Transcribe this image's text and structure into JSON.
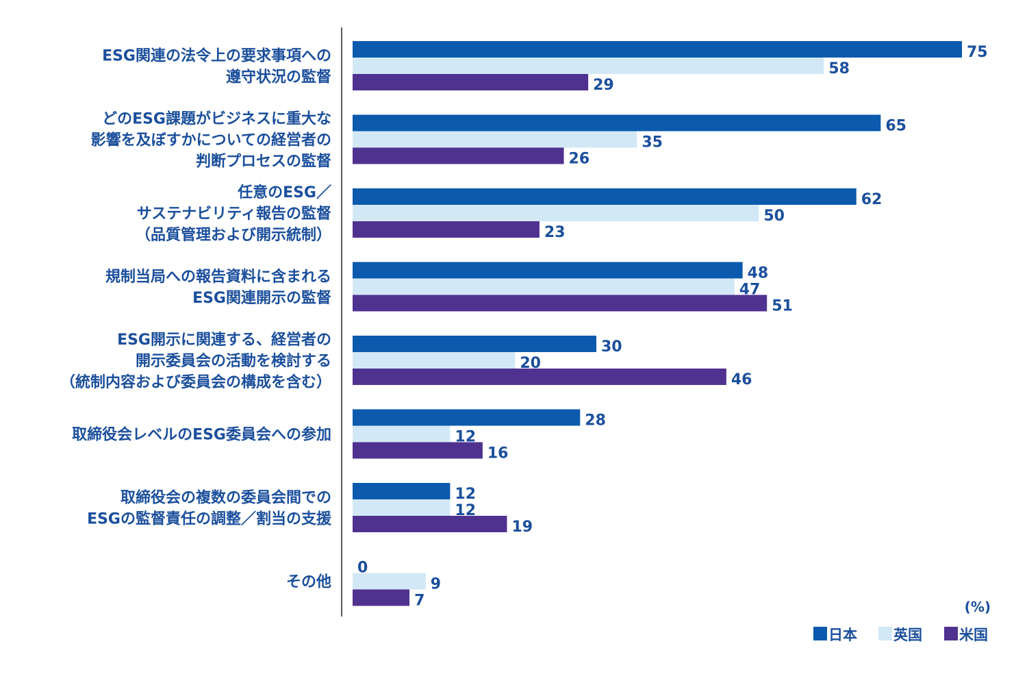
{
  "chart_data": {
    "type": "bar",
    "orientation": "horizontal",
    "title": "",
    "xlabel": "",
    "ylabel": "",
    "unit": "(%)",
    "xlim": [
      0,
      75
    ],
    "grid": false,
    "legend_position": "bottom-right",
    "categories": [
      [
        "ESG関連の法令上の要求事項への",
        "遵守状況の監督"
      ],
      [
        "どのESG課題がビジネスに重大な",
        "影響を及ぼすかについての経営者の",
        "判断プロセスの監督"
      ],
      [
        "任意のESG／",
        "サステナビリティ報告の監督",
        "（品質管理および開示統制）"
      ],
      [
        "規制当局への報告資料に含まれる",
        "ESG関連開示の監督"
      ],
      [
        "ESG開示に関連する、経営者の",
        "開示委員会の活動を検討する",
        "（統制内容および委員会の構成を含む）"
      ],
      [
        "取締役会レベルのESG委員会への参加"
      ],
      [
        "取締役会の複数の委員会間での",
        "ESGの監督責任の調整／割当の支援"
      ],
      [
        "その他"
      ]
    ],
    "series": [
      {
        "name": "日本",
        "color": "#0b5aad",
        "values": [
          75,
          65,
          62,
          48,
          30,
          28,
          12,
          0
        ]
      },
      {
        "name": "英国",
        "color": "#d3e8f6",
        "values": [
          58,
          35,
          50,
          47,
          20,
          12,
          12,
          9
        ]
      },
      {
        "name": "米国",
        "color": "#4f3290",
        "values": [
          29,
          26,
          23,
          51,
          46,
          16,
          19,
          7
        ]
      }
    ]
  }
}
